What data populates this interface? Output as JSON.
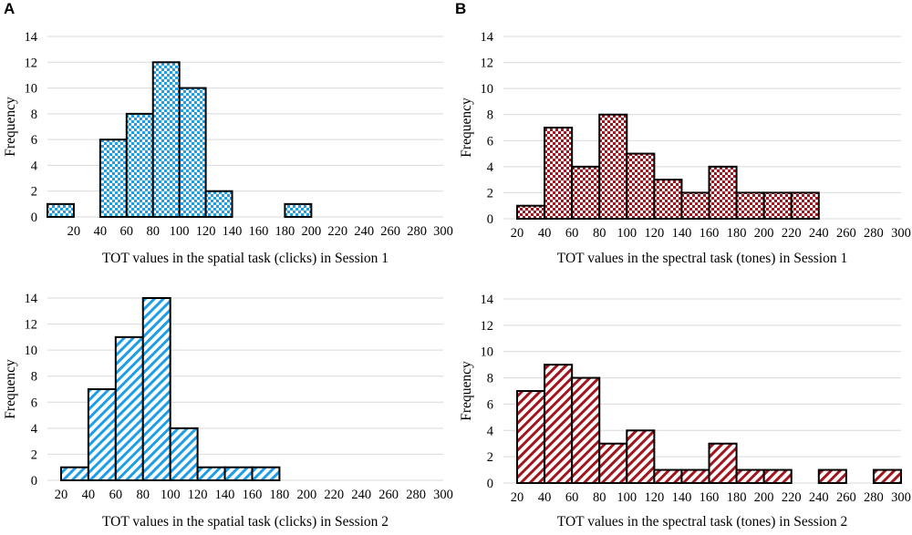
{
  "figure": {
    "panel_labels": [
      "A",
      "B"
    ]
  },
  "colors": {
    "spatial": "#1f9ee8",
    "spectral": "#a3151c",
    "grid": "#d9d9d9",
    "bar_outline": "#000000"
  },
  "chart_data": [
    {
      "id": "spatial-session1",
      "type": "bar",
      "subtype": "histogram",
      "pattern": "checker",
      "color_key": "spatial",
      "xlabel": "TOT values in the spatial task (clicks) in Session 1",
      "ylabel": "Frequency",
      "ylim": [
        0,
        14
      ],
      "yticks": [
        0,
        2,
        4,
        6,
        8,
        10,
        12,
        14
      ],
      "x_range": [
        0,
        300
      ],
      "xticks": [
        20,
        40,
        60,
        80,
        100,
        120,
        140,
        160,
        180,
        200,
        220,
        240,
        260,
        280,
        300
      ],
      "bins": [
        {
          "from": 0,
          "to": 20,
          "count": 1
        },
        {
          "from": 40,
          "to": 60,
          "count": 6
        },
        {
          "from": 60,
          "to": 80,
          "count": 8
        },
        {
          "from": 80,
          "to": 100,
          "count": 12
        },
        {
          "from": 100,
          "to": 120,
          "count": 10
        },
        {
          "from": 120,
          "to": 140,
          "count": 2
        },
        {
          "from": 180,
          "to": 200,
          "count": 1
        }
      ]
    },
    {
      "id": "spectral-session1",
      "type": "bar",
      "subtype": "histogram",
      "pattern": "checker",
      "color_key": "spectral",
      "xlabel": "TOT values in the spectral task (tones) in Session 1",
      "ylabel": "Frequency",
      "ylim": [
        0,
        14
      ],
      "yticks": [
        0,
        2,
        4,
        6,
        8,
        10,
        12,
        14
      ],
      "x_range": [
        10,
        300
      ],
      "xticks": [
        20,
        40,
        60,
        80,
        100,
        120,
        140,
        160,
        180,
        200,
        220,
        240,
        260,
        280,
        300
      ],
      "bins": [
        {
          "from": 20,
          "to": 40,
          "count": 1
        },
        {
          "from": 40,
          "to": 60,
          "count": 7
        },
        {
          "from": 60,
          "to": 80,
          "count": 4
        },
        {
          "from": 80,
          "to": 100,
          "count": 8
        },
        {
          "from": 100,
          "to": 120,
          "count": 5
        },
        {
          "from": 120,
          "to": 140,
          "count": 3
        },
        {
          "from": 140,
          "to": 160,
          "count": 2
        },
        {
          "from": 160,
          "to": 180,
          "count": 4
        },
        {
          "from": 180,
          "to": 200,
          "count": 2
        },
        {
          "from": 200,
          "to": 220,
          "count": 2
        },
        {
          "from": 220,
          "to": 240,
          "count": 2
        }
      ]
    },
    {
      "id": "spatial-session2",
      "type": "bar",
      "subtype": "histogram",
      "pattern": "diagonal",
      "color_key": "spatial",
      "xlabel": "TOT values in the spatial task (clicks) in Session 2",
      "ylabel": "Frequency",
      "ylim": [
        0,
        14
      ],
      "yticks": [
        0,
        2,
        4,
        6,
        8,
        10,
        12,
        14
      ],
      "x_range": [
        10,
        300
      ],
      "xticks": [
        20,
        40,
        60,
        80,
        100,
        120,
        140,
        160,
        180,
        200,
        220,
        240,
        260,
        280,
        300
      ],
      "bins": [
        {
          "from": 20,
          "to": 40,
          "count": 1
        },
        {
          "from": 40,
          "to": 60,
          "count": 7
        },
        {
          "from": 60,
          "to": 80,
          "count": 11
        },
        {
          "from": 80,
          "to": 100,
          "count": 14
        },
        {
          "from": 100,
          "to": 120,
          "count": 4
        },
        {
          "from": 120,
          "to": 140,
          "count": 1
        },
        {
          "from": 140,
          "to": 160,
          "count": 1
        },
        {
          "from": 160,
          "to": 180,
          "count": 1
        }
      ]
    },
    {
      "id": "spectral-session2",
      "type": "bar",
      "subtype": "histogram",
      "pattern": "diagonal",
      "color_key": "spectral",
      "xlabel": "TOT values in the spectral task (tones) in Session 2",
      "ylabel": "Frequency",
      "ylim": [
        0,
        14
      ],
      "yticks": [
        0,
        2,
        4,
        6,
        8,
        10,
        12,
        14
      ],
      "x_range": [
        10,
        300
      ],
      "xticks": [
        20,
        40,
        60,
        80,
        100,
        120,
        140,
        160,
        180,
        200,
        220,
        240,
        260,
        280,
        300
      ],
      "bins": [
        {
          "from": 20,
          "to": 40,
          "count": 7
        },
        {
          "from": 40,
          "to": 60,
          "count": 9
        },
        {
          "from": 60,
          "to": 80,
          "count": 8
        },
        {
          "from": 80,
          "to": 100,
          "count": 3
        },
        {
          "from": 100,
          "to": 120,
          "count": 4
        },
        {
          "from": 120,
          "to": 140,
          "count": 1
        },
        {
          "from": 140,
          "to": 160,
          "count": 1
        },
        {
          "from": 160,
          "to": 180,
          "count": 3
        },
        {
          "from": 180,
          "to": 200,
          "count": 1
        },
        {
          "from": 200,
          "to": 220,
          "count": 1
        },
        {
          "from": 240,
          "to": 260,
          "count": 1
        },
        {
          "from": 280,
          "to": 300,
          "count": 1
        }
      ]
    }
  ]
}
